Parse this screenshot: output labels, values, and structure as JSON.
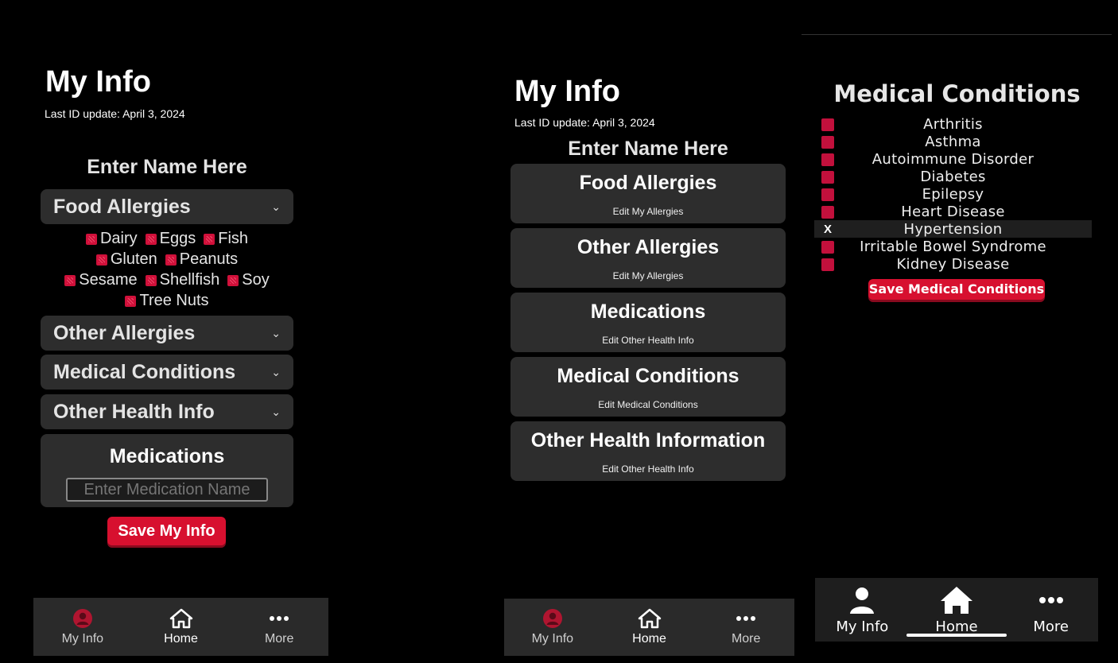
{
  "screen1": {
    "title": "My Info",
    "last_update": "Last ID update: April 3, 2024",
    "name_label": "Enter Name Here",
    "sections": [
      {
        "label": "Food Allergies"
      },
      {
        "label": "Other Allergies"
      },
      {
        "label": "Medical Conditions"
      },
      {
        "label": "Other Health Info"
      }
    ],
    "chevron": "⌄",
    "allergies": [
      "Dairy",
      "Eggs",
      "Fish",
      "Gluten",
      "Peanuts",
      "Sesame",
      "Shellfish",
      "Soy",
      "Tree Nuts"
    ],
    "medications": {
      "title": "Medications",
      "placeholder": "Enter Medication Name"
    },
    "save_button": "Save My Info"
  },
  "screen2": {
    "title": "My Info",
    "last_update": "Last ID update: April 3, 2024",
    "name_label": "Enter Name Here",
    "cards": [
      {
        "title": "Food Allergies",
        "subtitle": "Edit My Allergies"
      },
      {
        "title": "Other Allergies",
        "subtitle": "Edit My Allergies"
      },
      {
        "title": "Medications",
        "subtitle": "Edit Other Health Info"
      },
      {
        "title": "Medical Conditions",
        "subtitle": "Edit Medical Conditions"
      },
      {
        "title": "Other Health Information",
        "subtitle": "Edit Other Health Info"
      }
    ]
  },
  "screen3": {
    "title": "Medical Conditions",
    "conditions": [
      {
        "label": "Arthritis",
        "checked": false
      },
      {
        "label": "Asthma",
        "checked": false
      },
      {
        "label": "Autoimmune Disorder",
        "checked": false
      },
      {
        "label": "Diabetes",
        "checked": false
      },
      {
        "label": "Epilepsy",
        "checked": false
      },
      {
        "label": "Heart Disease",
        "checked": false
      },
      {
        "label": "Hypertension",
        "checked": true
      },
      {
        "label": "Irritable Bowel Syndrome",
        "checked": false
      },
      {
        "label": "Kidney Disease",
        "checked": false
      }
    ],
    "checked_mark": "X",
    "save_button": "Save Medical Conditions"
  },
  "nav": {
    "items": [
      {
        "label": "My Info",
        "icon": "person-icon"
      },
      {
        "label": "Home",
        "icon": "home-icon",
        "active": true
      },
      {
        "label": "More",
        "icon": "more-icon"
      }
    ]
  },
  "colors": {
    "accent": "#d7102f",
    "card": "#2d2d2d",
    "background": "#000000"
  }
}
